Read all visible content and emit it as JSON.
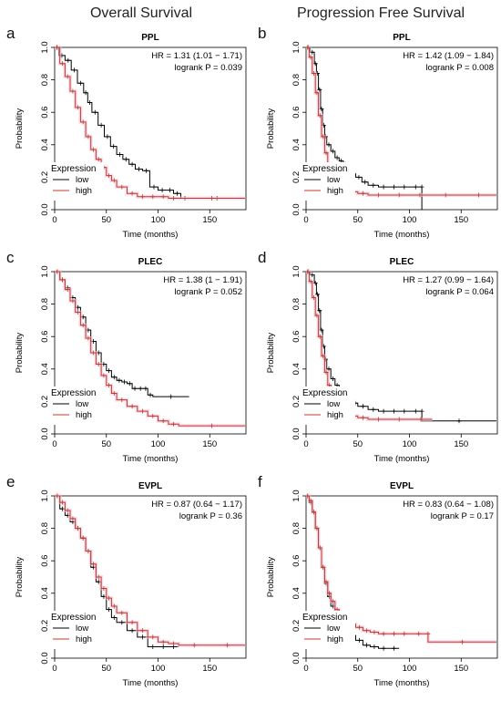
{
  "column_titles": [
    "Overall Survival",
    "Progression Free Survival"
  ],
  "colors": {
    "low": "#000000",
    "high": "#c0392b"
  },
  "chart_data": [
    {
      "type": "line",
      "panel": "a",
      "title": "PPL",
      "xlabel": "Time (months)",
      "ylabel": "Probability",
      "xlim": [
        0,
        185
      ],
      "ylim": [
        0,
        1
      ],
      "xticks": [
        "0",
        "50",
        "100",
        "150"
      ],
      "yticks": [
        "0.0",
        "0.2",
        "0.4",
        "0.6",
        "0.8",
        "1.0"
      ],
      "hr": "HR = 1.31 (1.01 − 1.71)",
      "logrank": "logrank P = 0.039",
      "legend_title": "Expression",
      "legend_position": "bottom-left",
      "series": [
        {
          "name": "low",
          "x": [
            0,
            4,
            10,
            16,
            22,
            28,
            32,
            36,
            42,
            48,
            54,
            60,
            66,
            72,
            78,
            85,
            92,
            100,
            108,
            115,
            122,
            130,
            184
          ],
          "y": [
            1.0,
            0.95,
            0.92,
            0.86,
            0.78,
            0.72,
            0.66,
            0.6,
            0.52,
            0.45,
            0.39,
            0.34,
            0.31,
            0.28,
            0.25,
            0.24,
            0.14,
            0.12,
            0.12,
            0.1,
            0.07,
            0.07,
            0.07
          ]
        },
        {
          "name": "high",
          "x": [
            0,
            5,
            10,
            15,
            20,
            25,
            30,
            35,
            40,
            45,
            50,
            55,
            60,
            70,
            80,
            90,
            100,
            110,
            120,
            184
          ],
          "y": [
            1.0,
            0.9,
            0.82,
            0.73,
            0.63,
            0.54,
            0.45,
            0.37,
            0.31,
            0.26,
            0.21,
            0.18,
            0.14,
            0.1,
            0.08,
            0.08,
            0.08,
            0.07,
            0.07,
            0.07
          ]
        }
      ]
    },
    {
      "type": "line",
      "panel": "b",
      "title": "PPL",
      "xlabel": "Time (months)",
      "ylabel": "Probability",
      "xlim": [
        0,
        185
      ],
      "ylim": [
        0,
        1
      ],
      "xticks": [
        "0",
        "50",
        "100",
        "150"
      ],
      "yticks": [
        "0.0",
        "0.2",
        "0.4",
        "0.6",
        "0.8",
        "1.0"
      ],
      "hr": "HR = 1.42 (1.09 − 1.84)",
      "logrank": "logrank P = 0.008",
      "legend_title": "Expression",
      "legend_position": "bottom-left",
      "series": [
        {
          "name": "low",
          "x": [
            0,
            4,
            8,
            10,
            12,
            14,
            16,
            18,
            20,
            24,
            28,
            32,
            36,
            40,
            44,
            48,
            54,
            60,
            70,
            80,
            90,
            100,
            112,
            112
          ],
          "y": [
            1.0,
            0.97,
            0.9,
            0.84,
            0.74,
            0.62,
            0.52,
            0.45,
            0.4,
            0.36,
            0.32,
            0.3,
            0.28,
            0.25,
            0.22,
            0.2,
            0.17,
            0.15,
            0.14,
            0.14,
            0.14,
            0.14,
            0.14,
            0.0
          ]
        },
        {
          "name": "high",
          "x": [
            0,
            3,
            6,
            9,
            12,
            15,
            18,
            21,
            24,
            28,
            32,
            36,
            42,
            50,
            60,
            80,
            100,
            120,
            150,
            184
          ],
          "y": [
            1.0,
            0.94,
            0.84,
            0.72,
            0.58,
            0.45,
            0.35,
            0.27,
            0.22,
            0.18,
            0.15,
            0.13,
            0.11,
            0.1,
            0.09,
            0.09,
            0.09,
            0.09,
            0.09,
            0.09
          ]
        }
      ]
    },
    {
      "type": "line",
      "panel": "c",
      "title": "PLEC",
      "xlabel": "Time (months)",
      "ylabel": "Probability",
      "xlim": [
        0,
        185
      ],
      "ylim": [
        0,
        1
      ],
      "xticks": [
        "0",
        "50",
        "100",
        "150"
      ],
      "yticks": [
        "0.0",
        "0.2",
        "0.4",
        "0.6",
        "0.8",
        "1.0"
      ],
      "hr": "HR = 1.38 (1 − 1.91)",
      "logrank": "logrank P = 0.052",
      "legend_title": "Expression",
      "legend_position": "bottom-left",
      "series": [
        {
          "name": "low",
          "x": [
            0,
            5,
            10,
            15,
            20,
            25,
            30,
            35,
            40,
            45,
            50,
            55,
            60,
            65,
            70,
            75,
            80,
            86,
            90,
            95,
            130
          ],
          "y": [
            1.0,
            0.95,
            0.9,
            0.84,
            0.78,
            0.72,
            0.64,
            0.57,
            0.5,
            0.43,
            0.39,
            0.35,
            0.33,
            0.32,
            0.31,
            0.28,
            0.28,
            0.28,
            0.24,
            0.23,
            0.23
          ]
        },
        {
          "name": "high",
          "x": [
            0,
            5,
            10,
            15,
            20,
            25,
            30,
            35,
            40,
            45,
            50,
            55,
            60,
            70,
            80,
            90,
            100,
            110,
            120,
            184
          ],
          "y": [
            1.0,
            0.95,
            0.89,
            0.82,
            0.75,
            0.67,
            0.59,
            0.5,
            0.43,
            0.36,
            0.3,
            0.25,
            0.21,
            0.17,
            0.14,
            0.11,
            0.08,
            0.06,
            0.05,
            0.05
          ]
        }
      ]
    },
    {
      "type": "line",
      "panel": "d",
      "title": "PLEC",
      "xlabel": "Time (months)",
      "ylabel": "Probability",
      "xlim": [
        0,
        185
      ],
      "ylim": [
        0,
        1
      ],
      "xticks": [
        "0",
        "50",
        "100",
        "150"
      ],
      "yticks": [
        "0.0",
        "0.2",
        "0.4",
        "0.6",
        "0.8",
        "1.0"
      ],
      "hr": "HR = 1.27 (0.99 − 1.64)",
      "logrank": "logrank P = 0.064",
      "legend_title": "Expression",
      "legend_position": "bottom-left",
      "series": [
        {
          "name": "low",
          "x": [
            0,
            4,
            8,
            10,
            12,
            14,
            16,
            18,
            20,
            24,
            28,
            32,
            36,
            40,
            45,
            50,
            60,
            70,
            80,
            90,
            100,
            112,
            112,
            184
          ],
          "y": [
            1.0,
            0.98,
            0.93,
            0.86,
            0.76,
            0.64,
            0.54,
            0.46,
            0.4,
            0.34,
            0.3,
            0.26,
            0.23,
            0.21,
            0.19,
            0.17,
            0.15,
            0.14,
            0.14,
            0.14,
            0.14,
            0.14,
            0.08,
            0.08
          ]
        },
        {
          "name": "high",
          "x": [
            0,
            3,
            6,
            9,
            12,
            15,
            18,
            21,
            24,
            28,
            32,
            36,
            42,
            50,
            60,
            80,
            100,
            122
          ],
          "y": [
            1.0,
            0.94,
            0.84,
            0.73,
            0.6,
            0.48,
            0.38,
            0.3,
            0.24,
            0.19,
            0.16,
            0.13,
            0.11,
            0.1,
            0.09,
            0.09,
            0.09,
            0.09
          ]
        }
      ]
    },
    {
      "type": "line",
      "panel": "e",
      "title": "EVPL",
      "xlabel": "Time (months)",
      "ylabel": "Probability",
      "xlim": [
        0,
        185
      ],
      "ylim": [
        0,
        1
      ],
      "xticks": [
        "0",
        "50",
        "100",
        "150"
      ],
      "yticks": [
        "0.0",
        "0.2",
        "0.4",
        "0.6",
        "0.8",
        "1.0"
      ],
      "hr": "HR = 0.87 (0.64 − 1.17)",
      "logrank": "logrank P = 0.36",
      "legend_title": "Expression",
      "legend_position": "bottom-left",
      "series": [
        {
          "name": "low",
          "x": [
            0,
            5,
            10,
            15,
            20,
            25,
            30,
            35,
            40,
            45,
            50,
            55,
            60,
            70,
            80,
            90,
            100,
            110,
            120
          ],
          "y": [
            1.0,
            0.92,
            0.88,
            0.84,
            0.8,
            0.74,
            0.66,
            0.56,
            0.47,
            0.38,
            0.3,
            0.25,
            0.22,
            0.17,
            0.13,
            0.07,
            0.07,
            0.07,
            0.07
          ]
        },
        {
          "name": "high",
          "x": [
            0,
            5,
            10,
            15,
            20,
            25,
            30,
            35,
            40,
            45,
            50,
            55,
            60,
            70,
            80,
            90,
            100,
            110,
            120,
            150,
            184
          ],
          "y": [
            1.0,
            0.96,
            0.91,
            0.86,
            0.8,
            0.74,
            0.66,
            0.58,
            0.5,
            0.43,
            0.37,
            0.32,
            0.28,
            0.22,
            0.17,
            0.13,
            0.1,
            0.09,
            0.08,
            0.08,
            0.08
          ]
        }
      ]
    },
    {
      "type": "line",
      "panel": "f",
      "title": "EVPL",
      "xlabel": "Time (months)",
      "ylabel": "Probability",
      "xlim": [
        0,
        185
      ],
      "ylim": [
        0,
        1
      ],
      "xticks": [
        "0",
        "50",
        "100",
        "150"
      ],
      "yticks": [
        "0.0",
        "0.2",
        "0.4",
        "0.6",
        "0.8",
        "1.0"
      ],
      "hr": "HR = 0.83 (0.64 − 1.08)",
      "logrank": "logrank P = 0.17",
      "legend_title": "Expression",
      "legend_position": "bottom-left",
      "series": [
        {
          "name": "low",
          "x": [
            0,
            3,
            6,
            9,
            12,
            15,
            18,
            21,
            24,
            28,
            32,
            36,
            42,
            48,
            55,
            62,
            70,
            80,
            90
          ],
          "y": [
            1.0,
            0.96,
            0.9,
            0.8,
            0.68,
            0.56,
            0.46,
            0.38,
            0.32,
            0.26,
            0.22,
            0.18,
            0.14,
            0.11,
            0.08,
            0.07,
            0.06,
            0.06,
            0.06
          ]
        },
        {
          "name": "high",
          "x": [
            0,
            3,
            6,
            9,
            12,
            15,
            18,
            21,
            24,
            28,
            32,
            36,
            42,
            48,
            55,
            62,
            70,
            80,
            90,
            100,
            118,
            118,
            184
          ],
          "y": [
            1.0,
            0.97,
            0.9,
            0.8,
            0.68,
            0.56,
            0.47,
            0.4,
            0.35,
            0.3,
            0.27,
            0.24,
            0.21,
            0.19,
            0.17,
            0.16,
            0.15,
            0.15,
            0.15,
            0.15,
            0.15,
            0.1,
            0.1
          ]
        }
      ]
    }
  ]
}
